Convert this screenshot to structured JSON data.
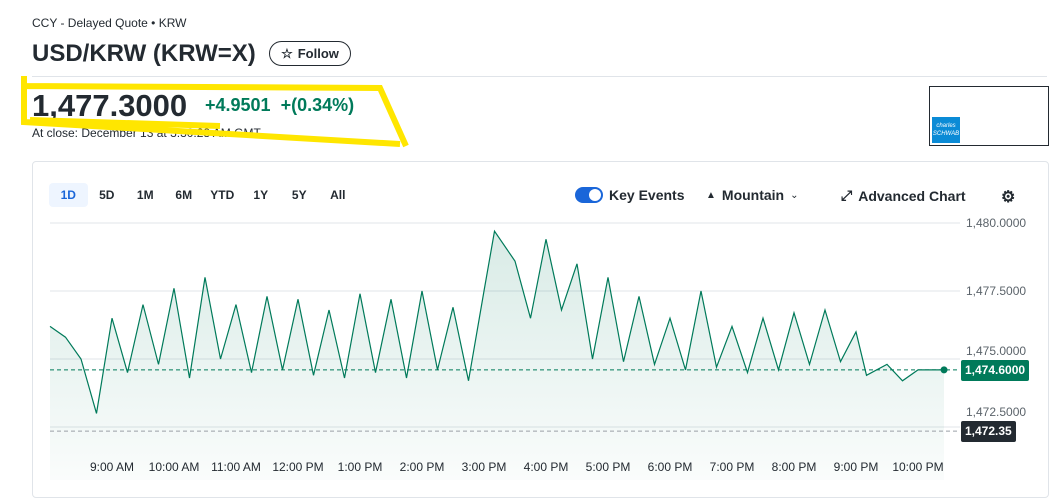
{
  "header": {
    "breadcrumb": "CCY - Delayed Quote • KRW",
    "title": "USD/KRW (KRW=X)",
    "follow_label": "Follow"
  },
  "quote": {
    "price": "1,477.3000",
    "change": "+4.9501",
    "change_pct": "+(0.34%)",
    "close_note": "At close: December 13 at 3:30:28 AM GMT"
  },
  "ad": {
    "brand": "charles SCHWAB"
  },
  "toolbar": {
    "ranges": [
      "1D",
      "5D",
      "1M",
      "6M",
      "YTD",
      "1Y",
      "5Y",
      "All"
    ],
    "active_range": "1D",
    "key_events_label": "Key Events",
    "key_events_on": true,
    "chart_type_label": "Mountain",
    "advanced_label": "Advanced Chart"
  },
  "colors": {
    "up": "#007a5a",
    "accent": "#1a66d9",
    "highlight": "#ffe600"
  },
  "chart_data": {
    "type": "area",
    "x_unit": "hour of day",
    "ylim": [
      1472.0,
      1480.3
    ],
    "xlim": [
      8.0,
      22.42
    ],
    "y_ticks": [
      "1,480.0000",
      "1,477.5000",
      "1,475.0000",
      "1,472.5000"
    ],
    "y_tick_values": [
      1480,
      1477.5,
      1475,
      1472.5
    ],
    "x_ticks": [
      "9:00 AM",
      "10:00 AM",
      "11:00 AM",
      "12:00 PM",
      "1:00 PM",
      "2:00 PM",
      "3:00 PM",
      "4:00 PM",
      "5:00 PM",
      "6:00 PM",
      "7:00 PM",
      "8:00 PM",
      "9:00 PM",
      "10:00 PM"
    ],
    "x_tick_values": [
      9,
      10,
      11,
      12,
      13,
      14,
      15,
      16,
      17,
      18,
      19,
      20,
      21,
      22
    ],
    "current_label": "1,474.6000",
    "current_value": 1474.6,
    "prev_close_label": "1,472.35",
    "prev_close_value": 1472.35,
    "x": [
      8,
      8.25,
      8.5,
      8.75,
      9,
      9.25,
      9.5,
      9.75,
      10,
      10.25,
      10.5,
      10.75,
      11,
      11.25,
      11.5,
      11.75,
      12,
      12.25,
      12.5,
      12.75,
      13,
      13.25,
      13.5,
      13.75,
      14,
      14.25,
      14.5,
      14.75,
      15,
      15.17,
      15.5,
      15.75,
      16,
      16.25,
      16.5,
      16.75,
      17,
      17.25,
      17.5,
      17.75,
      18,
      18.25,
      18.5,
      18.75,
      19,
      19.25,
      19.5,
      19.75,
      20,
      20.25,
      20.5,
      20.75,
      21,
      21.17,
      21.5,
      21.75,
      22,
      22.42
    ],
    "y": [
      1476.2,
      1475.8,
      1475.0,
      1473.0,
      1476.5,
      1474.5,
      1477.0,
      1474.8,
      1477.6,
      1474.3,
      1478.0,
      1475.0,
      1477.0,
      1474.5,
      1477.3,
      1474.6,
      1477.2,
      1474.4,
      1476.8,
      1474.3,
      1477.4,
      1474.5,
      1477.2,
      1474.3,
      1477.5,
      1474.6,
      1476.9,
      1474.2,
      1477.5,
      1479.7,
      1478.6,
      1476.5,
      1479.4,
      1476.8,
      1478.5,
      1475.0,
      1478.0,
      1474.9,
      1477.3,
      1474.8,
      1476.5,
      1474.6,
      1477.5,
      1474.7,
      1476.2,
      1474.5,
      1476.5,
      1474.6,
      1476.7,
      1474.8,
      1476.8,
      1474.9,
      1476.0,
      1474.4,
      1474.8,
      1474.2,
      1474.6,
      1474.6
    ]
  }
}
